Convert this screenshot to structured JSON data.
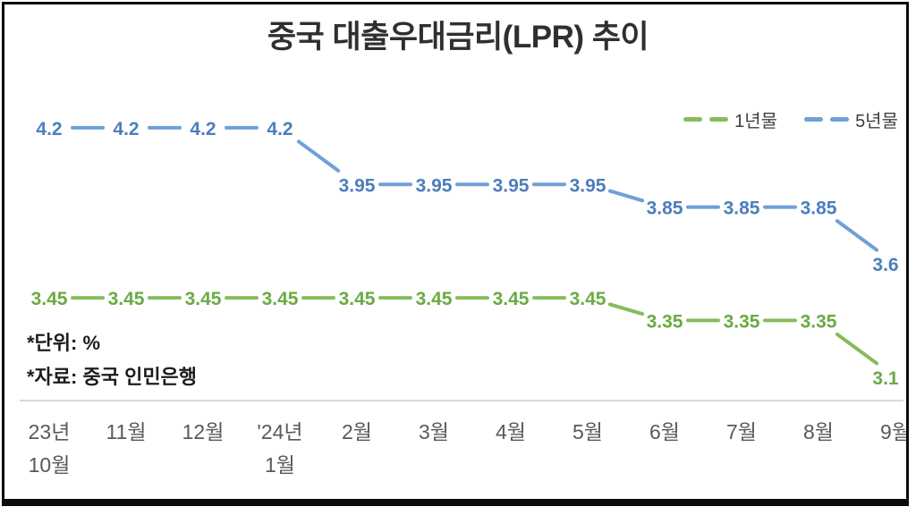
{
  "chart_data": {
    "type": "line",
    "title": "중국 대출우대금리(LPR) 추이",
    "unit_note": "*단위: %",
    "source_note": "*자료: 중국 인민은행",
    "legend_position": "top-right",
    "grid": false,
    "ylim": [
      3.0,
      4.4
    ],
    "categories": [
      "23년\n10월",
      "11월",
      "12월",
      "'24년\n1월",
      "2월",
      "3월",
      "4월",
      "5월",
      "6월",
      "7월",
      "8월",
      "9월"
    ],
    "series": [
      {
        "key": "1yr",
        "name": "1년물",
        "line_color": "#85bd5d",
        "label_color": "#6aab42",
        "values": [
          3.45,
          3.45,
          3.45,
          3.45,
          3.45,
          3.45,
          3.45,
          3.45,
          3.35,
          3.35,
          3.35,
          3.1
        ],
        "labels": [
          "3.45",
          "3.45",
          "3.45",
          "3.45",
          "3.45",
          "3.45",
          "3.45",
          "3.45",
          "3.35",
          "3.35",
          "3.35",
          "3.1"
        ]
      },
      {
        "key": "5yr",
        "name": "5년물",
        "line_color": "#6fa0d6",
        "label_color": "#4d7ebd",
        "values": [
          4.2,
          4.2,
          4.2,
          4.2,
          3.95,
          3.95,
          3.95,
          3.95,
          3.85,
          3.85,
          3.85,
          3.6
        ],
        "labels": [
          "4.2",
          "4.2",
          "4.2",
          "4.2",
          "3.95",
          "3.95",
          "3.95",
          "3.95",
          "3.85",
          "3.85",
          "3.85",
          "3.6"
        ]
      }
    ],
    "colors": {
      "title_text": "#2f2f2f",
      "axis_line": "#d9d9d9",
      "axis_text": "#595959",
      "note_text": "#1c1c1c",
      "border": "#0b0b0b"
    }
  }
}
